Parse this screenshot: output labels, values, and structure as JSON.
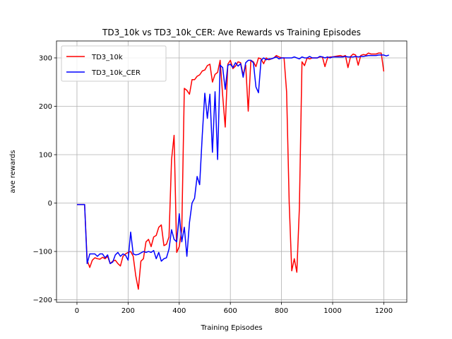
{
  "chart_data": {
    "type": "line",
    "title": "TD3_10k vs TD3_10k_CER: Ave Rewards vs Training Episodes",
    "xlabel": "Training Episodes",
    "ylabel": "ave rewards",
    "xlim": [
      -80,
      1290
    ],
    "ylim": [
      -205,
      335
    ],
    "xticks": [
      0,
      200,
      400,
      600,
      800,
      1000,
      1200
    ],
    "yticks": [
      -200,
      -100,
      0,
      100,
      200,
      300
    ],
    "grid": true,
    "legend_position": "upper left",
    "series": [
      {
        "name": "TD3_10k",
        "color": "#ff0000",
        "x": [
          0,
          10,
          20,
          30,
          40,
          50,
          60,
          70,
          80,
          90,
          100,
          110,
          120,
          130,
          140,
          150,
          160,
          170,
          180,
          190,
          200,
          210,
          220,
          230,
          240,
          250,
          260,
          270,
          280,
          290,
          300,
          310,
          320,
          330,
          340,
          350,
          360,
          370,
          380,
          390,
          400,
          410,
          420,
          430,
          440,
          450,
          460,
          470,
          480,
          490,
          500,
          510,
          520,
          530,
          540,
          550,
          560,
          570,
          580,
          590,
          600,
          610,
          620,
          630,
          640,
          650,
          660,
          670,
          680,
          690,
          700,
          710,
          720,
          730,
          740,
          750,
          760,
          770,
          780,
          790,
          800,
          810,
          820,
          830,
          840,
          850,
          860,
          870,
          880,
          890,
          900,
          910,
          920,
          930,
          940,
          950,
          960,
          970,
          980,
          990,
          1000,
          1010,
          1020,
          1030,
          1040,
          1050,
          1060,
          1070,
          1080,
          1090,
          1100,
          1110,
          1120,
          1130,
          1140,
          1150,
          1160,
          1170,
          1180,
          1190,
          1200
        ],
        "y": [
          -3,
          -3,
          -3,
          -3,
          -118,
          -133,
          -118,
          -113,
          -115,
          -116,
          -112,
          -115,
          -110,
          -125,
          -120,
          -118,
          -125,
          -130,
          -110,
          -105,
          -102,
          -100,
          -110,
          -150,
          -178,
          -120,
          -115,
          -80,
          -75,
          -90,
          -70,
          -67,
          -50,
          -45,
          -88,
          -85,
          -70,
          90,
          140,
          -102,
          -90,
          -55,
          237,
          233,
          225,
          255,
          255,
          262,
          265,
          273,
          275,
          284,
          287,
          250,
          266,
          270,
          295,
          222,
          157,
          287,
          295,
          278,
          283,
          292,
          290,
          265,
          285,
          190,
          295,
          292,
          282,
          300,
          298,
          288,
          300,
          296,
          298,
          300,
          305,
          302,
          300,
          300,
          230,
          0,
          -140,
          -115,
          -143,
          -10,
          292,
          284,
          300,
          298,
          300,
          300,
          300,
          302,
          302,
          282,
          300,
          302,
          302,
          303,
          304,
          305,
          303,
          305,
          280,
          303,
          308,
          306,
          285,
          305,
          307,
          306,
          310,
          308,
          308,
          308,
          310,
          310,
          272
        ]
      },
      {
        "name": "TD3_10k_CER",
        "color": "#0000ff",
        "x": [
          0,
          10,
          20,
          30,
          40,
          50,
          60,
          70,
          80,
          90,
          100,
          110,
          120,
          130,
          140,
          150,
          160,
          170,
          180,
          190,
          200,
          210,
          220,
          230,
          240,
          250,
          260,
          270,
          280,
          290,
          300,
          310,
          320,
          330,
          340,
          350,
          360,
          370,
          380,
          390,
          400,
          410,
          420,
          430,
          440,
          450,
          460,
          470,
          480,
          490,
          500,
          510,
          520,
          530,
          540,
          550,
          560,
          570,
          580,
          590,
          600,
          610,
          620,
          630,
          640,
          650,
          660,
          670,
          680,
          690,
          700,
          710,
          720,
          730,
          740,
          750,
          760,
          770,
          780,
          790,
          800,
          810,
          820,
          830,
          840,
          850,
          860,
          870,
          880,
          890,
          900,
          910,
          920,
          930,
          940,
          950,
          960,
          970,
          980,
          990,
          1000,
          1010,
          1020,
          1030,
          1040,
          1050,
          1060,
          1070,
          1080,
          1090,
          1100,
          1110,
          1120,
          1130,
          1140,
          1150,
          1160,
          1170,
          1180,
          1190,
          1200,
          1210,
          1220
        ],
        "y": [
          -3,
          -3,
          -3,
          -3,
          -125,
          -105,
          -105,
          -105,
          -110,
          -105,
          -105,
          -113,
          -107,
          -125,
          -122,
          -107,
          -102,
          -110,
          -105,
          -108,
          -118,
          -60,
          -105,
          -107,
          -106,
          -103,
          -100,
          -102,
          -100,
          -102,
          -98,
          -115,
          -102,
          -120,
          -115,
          -113,
          -95,
          -55,
          -75,
          -80,
          -22,
          -80,
          -50,
          -110,
          -40,
          0,
          10,
          55,
          38,
          140,
          227,
          175,
          225,
          105,
          230,
          90,
          285,
          280,
          235,
          285,
          287,
          280,
          290,
          283,
          288,
          260,
          290,
          295,
          295,
          290,
          240,
          228,
          295,
          300,
          296,
          298,
          298,
          300,
          302,
          298,
          300,
          300,
          300,
          300,
          300,
          302,
          300,
          298,
          302,
          300,
          300,
          303,
          300,
          300,
          300,
          303,
          302,
          300,
          302,
          300,
          302,
          302,
          302,
          302,
          302,
          303,
          302,
          302,
          302,
          303,
          302,
          303,
          303,
          304,
          305,
          305,
          305,
          305,
          306,
          306,
          306,
          304,
          306
        ]
      }
    ]
  }
}
